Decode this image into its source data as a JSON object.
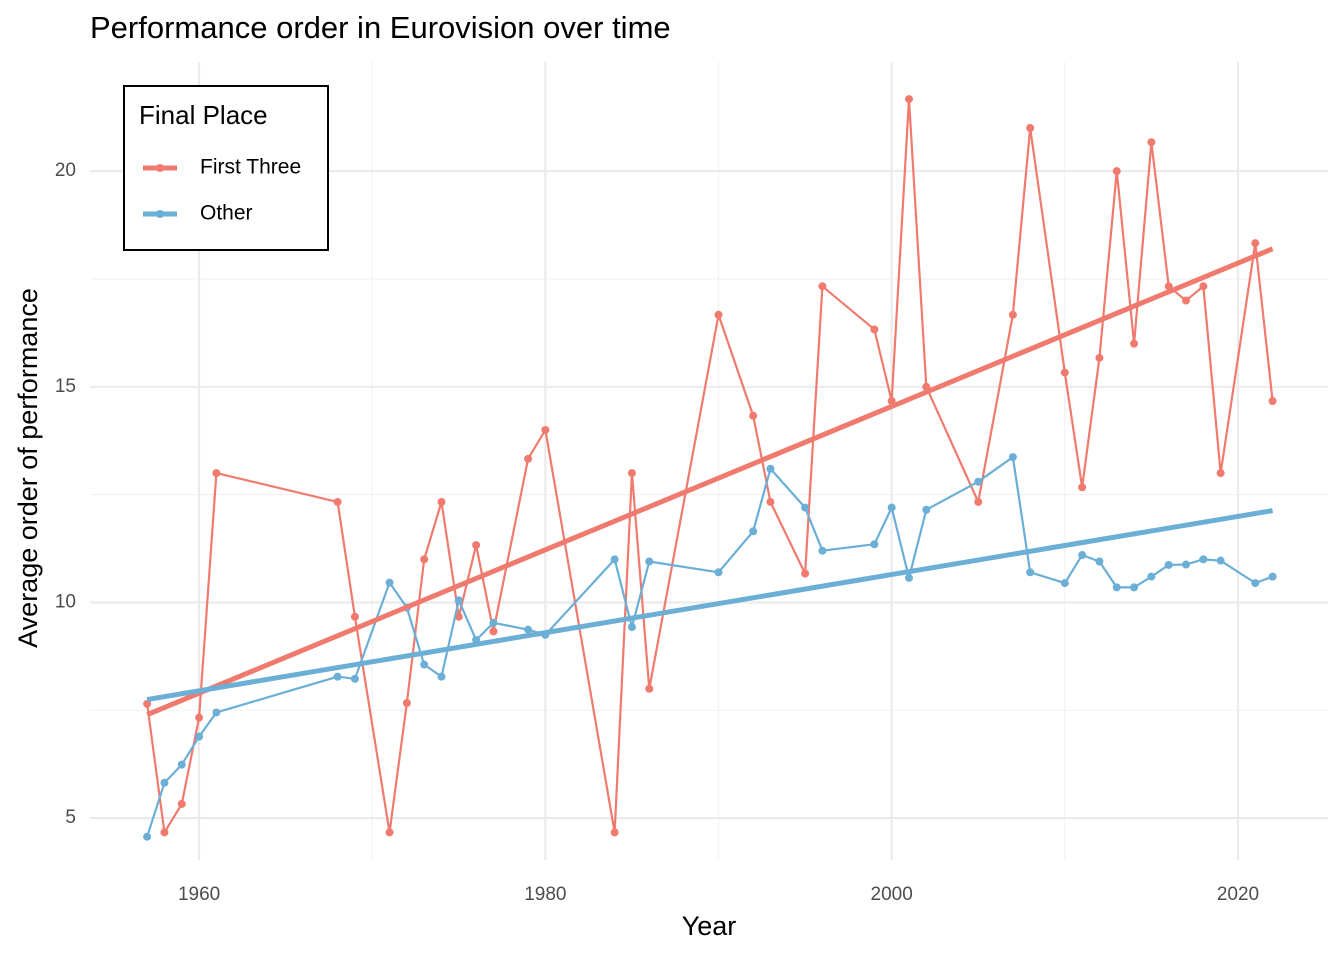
{
  "chart_data": {
    "type": "line",
    "title": "Performance order in Eurovision over time",
    "x_label": "Year",
    "y_label": "Average order of performance",
    "legend_title": "Final Place",
    "legend": "top-left",
    "grid": true,
    "x": [
      1957,
      1958,
      1959,
      1960,
      1961,
      1968,
      1969,
      1971,
      1972,
      1973,
      1974,
      1975,
      1976,
      1977,
      1979,
      1980,
      1984,
      1985,
      1986,
      1990,
      1992,
      1993,
      1995,
      1996,
      1999,
      2000,
      2001,
      2002,
      2005,
      2007,
      2008,
      2010,
      2011,
      2012,
      2013,
      2014,
      2015,
      2016,
      2017,
      2018,
      2019,
      2021,
      2022
    ],
    "trend_x": [
      1957,
      2022
    ],
    "series": [
      {
        "name": "First Three",
        "color": "#f07a6e",
        "values": [
          7.65,
          4.67,
          5.33,
          7.33,
          13,
          12.33,
          9.67,
          4.67,
          7.67,
          11,
          12.33,
          9.67,
          11.33,
          9.33,
          13.33,
          14,
          4.67,
          13,
          8,
          16.67,
          14.33,
          12.33,
          10.67,
          17.33,
          16.33,
          14.67,
          21.67,
          15,
          12.33,
          16.67,
          21,
          15.33,
          12.67,
          15.67,
          20,
          16,
          20.67,
          17.33,
          17,
          17.33,
          13,
          18.33,
          14.67
        ],
        "trend": [
          7.4,
          18.2
        ]
      },
      {
        "name": "Other",
        "color": "#6baed6",
        "values": [
          4.57,
          5.82,
          6.24,
          6.89,
          7.45,
          8.28,
          8.23,
          10.46,
          9.88,
          8.56,
          8.28,
          10.05,
          9.13,
          9.53,
          9.37,
          9.25,
          11,
          9.43,
          10.95,
          10.7,
          11.65,
          13.1,
          12.2,
          11.2,
          11.35,
          12.2,
          10.57,
          12.15,
          12.8,
          13.37,
          10.7,
          10.45,
          11.1,
          10.95,
          10.35,
          10.35,
          10.6,
          10.87,
          10.88,
          11,
          10.97,
          10.45,
          10.6
        ],
        "trend": [
          7.75,
          12.13
        ]
      }
    ],
    "xlim": [
      1953.7,
      2025.2
    ],
    "xticks": [
      1960,
      1980,
      2000,
      2020
    ],
    "x_minor_ticks": [
      1970,
      1990,
      2010
    ],
    "ylim": [
      4.03,
      22.53
    ],
    "yticks": [
      5,
      10,
      15,
      20
    ],
    "y_minor_ticks": [
      7.5,
      12.5,
      17.5
    ]
  }
}
